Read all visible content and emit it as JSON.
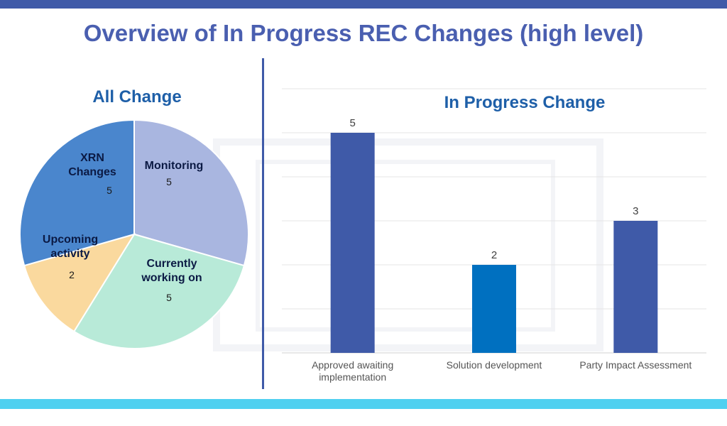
{
  "title": "Overview of In Progress REC Changes (high level)",
  "colors": {
    "top_bar": "#3f5aa8",
    "bottom_bar": "#4fd0f0",
    "title": "#4a5fb0",
    "chart_title": "#1e5fa8"
  },
  "chart_data": [
    {
      "type": "pie",
      "title": "All Change",
      "slices": [
        {
          "label": "Monitoring",
          "value": 5,
          "color": "#a9b6e0"
        },
        {
          "label": "Currently working on",
          "value": 5,
          "color": "#b8ead8"
        },
        {
          "label": "Upcoming activity",
          "value": 2,
          "color": "#fad99e"
        },
        {
          "label": "XRN Changes",
          "value": 5,
          "color": "#4a86cd"
        }
      ]
    },
    {
      "type": "bar",
      "title": "In Progress Change",
      "categories": [
        "Approved awaiting implementation",
        "Solution development",
        "Party Impact Assessment"
      ],
      "values": [
        5,
        2,
        3
      ],
      "colors": [
        "#3f5aa8",
        "#0070c0",
        "#3f5aa8"
      ],
      "ylim": [
        0,
        6
      ],
      "grid": true
    }
  ]
}
